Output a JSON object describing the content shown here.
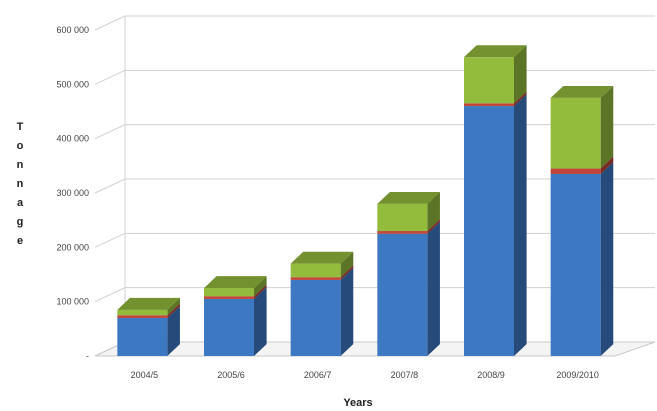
{
  "chart_data": {
    "type": "bar",
    "stacked": true,
    "style": "3d-column",
    "categories": [
      "2004/5",
      "2005/6",
      "2006/7",
      "2007/8",
      "2008/9",
      "2009/2010"
    ],
    "series": [
      {
        "values": [
          70000,
          105000,
          140000,
          225000,
          460000,
          335000
        ],
        "color": "#3d78c3"
      },
      {
        "values": [
          5000,
          5000,
          5000,
          5000,
          5000,
          10000
        ],
        "color": "#c0453a"
      },
      {
        "values": [
          10000,
          15000,
          25000,
          50000,
          85000,
          130000
        ],
        "color": "#93bb3c"
      }
    ],
    "y_ticks": [
      "-",
      "100 000",
      "200 000",
      "300 000",
      "400 000",
      "500 000",
      "600 000"
    ],
    "ylim": [
      0,
      600000
    ],
    "xlabel": "Years",
    "ylabel": "Tonnage",
    "grid": true,
    "legend": "none"
  }
}
